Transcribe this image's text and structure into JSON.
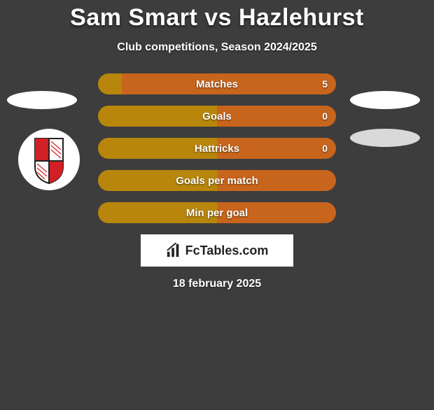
{
  "title": "Sam Smart vs Hazlehurst",
  "subtitle": "Club competitions, Season 2024/2025",
  "date": "18 february 2025",
  "colors": {
    "left": "#b8860b",
    "right": "#c8651d",
    "background": "#3d3d3d",
    "ellipse_light": "#ffffff",
    "ellipse_grey": "#d9d9d9",
    "box_bg": "#ffffff",
    "box_text": "#222222"
  },
  "stats": [
    {
      "label": "Matches",
      "left_val": "",
      "right_val": "5",
      "left_pct": 10,
      "right_pct": 90,
      "show_left": false,
      "show_right": true
    },
    {
      "label": "Goals",
      "left_val": "",
      "right_val": "0",
      "left_pct": 50,
      "right_pct": 50,
      "show_left": false,
      "show_right": true
    },
    {
      "label": "Hattricks",
      "left_val": "",
      "right_val": "0",
      "left_pct": 50,
      "right_pct": 50,
      "show_left": false,
      "show_right": true
    },
    {
      "label": "Goals per match",
      "left_val": "",
      "right_val": "",
      "left_pct": 50,
      "right_pct": 50,
      "show_left": false,
      "show_right": false
    },
    {
      "label": "Min per goal",
      "left_val": "",
      "right_val": "",
      "left_pct": 50,
      "right_pct": 50,
      "show_left": false,
      "show_right": false
    }
  ],
  "branding": {
    "text": "FcTables.com"
  },
  "badge": {
    "bg": "#ffffff",
    "shield_stroke": "#222222",
    "shield_red": "#d22027"
  }
}
